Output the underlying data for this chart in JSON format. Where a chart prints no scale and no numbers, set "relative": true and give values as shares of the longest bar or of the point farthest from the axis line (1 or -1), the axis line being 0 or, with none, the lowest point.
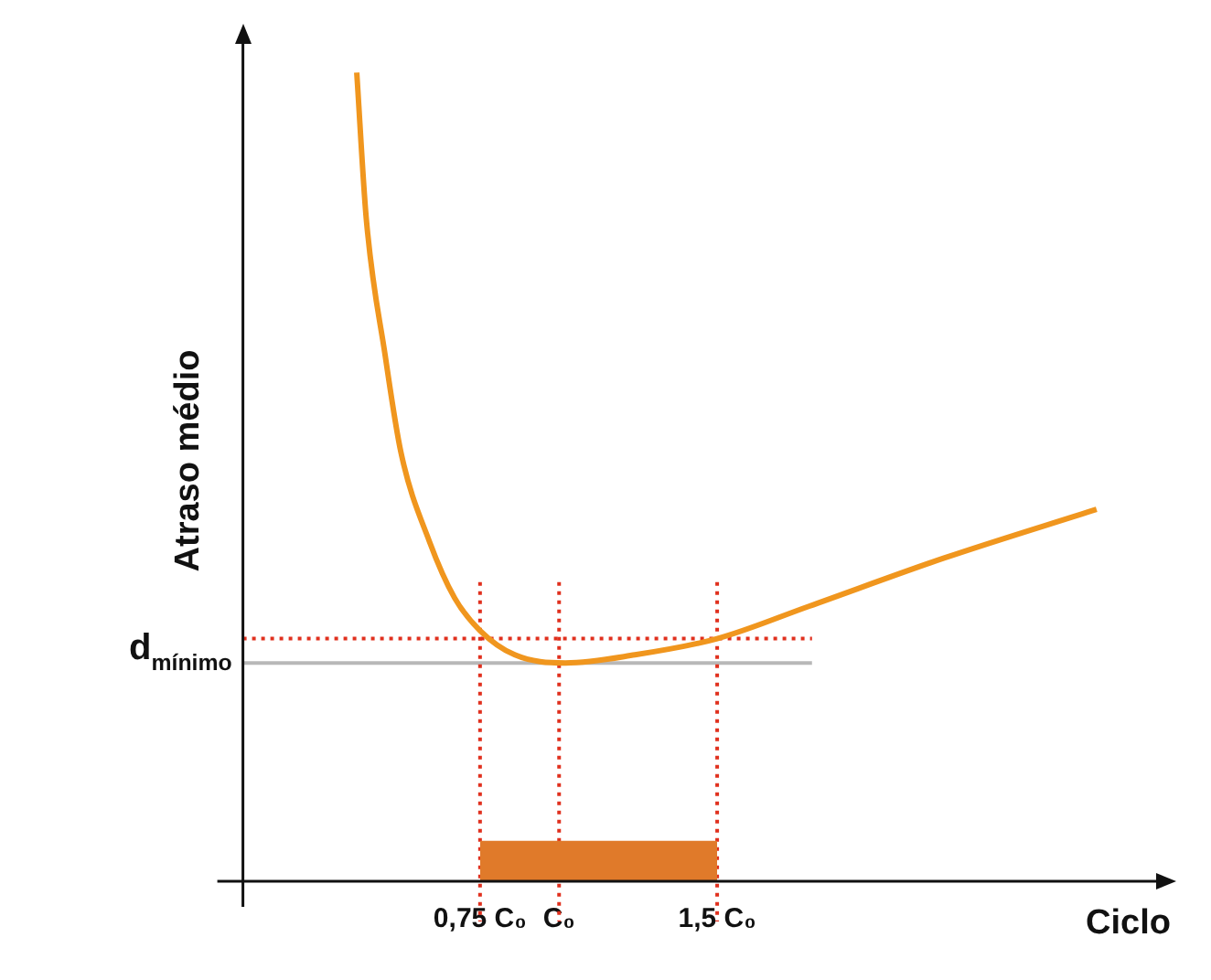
{
  "chart_data": {
    "type": "line",
    "ylabel": "Atraso médio",
    "xlabel": "Ciclo",
    "relative": true,
    "series": [
      {
        "x": [
          0.36,
          0.39,
          0.45,
          0.5,
          0.59,
          0.67,
          0.75,
          0.86,
          1.02,
          1.24,
          1.5,
          1.79,
          2.22,
          2.7
        ],
        "values": [
          1,
          0.82,
          0.65,
          0.53,
          0.42,
          0.35,
          0.31,
          0.28,
          0.27,
          0.28,
          0.3,
          0.34,
          0.4,
          0.46
        ],
        "color": "#f0961e"
      },
      {
        "type": "area",
        "x": [
          0.75,
          1.5
        ],
        "values": [
          0.05,
          0.05
        ],
        "color": "#e07a2a"
      }
    ],
    "marker": "none",
    "line_style": "solid",
    "grid": false,
    "legend": false,
    "xlim": [
      0,
      2.9
    ],
    "xticks": [
      {
        "value": 0.75,
        "label": "0,75 C₀"
      },
      {
        "value": 1,
        "label": "C₀"
      },
      {
        "value": 1.5,
        "label": "1,5 C₀"
      }
    ],
    "ref_lines": [
      {
        "axis": "y",
        "value": 0.3,
        "color": "#e0301e",
        "line_style": "dotted"
      },
      {
        "axis": "y",
        "value": 0.27,
        "label": "d$_{mínimo}$",
        "color": "#b8b8b8",
        "line_style": "solid"
      },
      {
        "axis": "x",
        "value": 0.75,
        "color": "#e0301e",
        "line_style": "dotted"
      },
      {
        "axis": "x",
        "value": 1,
        "color": "#e0301e",
        "line_style": "dotted"
      },
      {
        "axis": "x",
        "value": 1.5,
        "color": "#e0301e",
        "line_style": "dotted"
      }
    ]
  }
}
